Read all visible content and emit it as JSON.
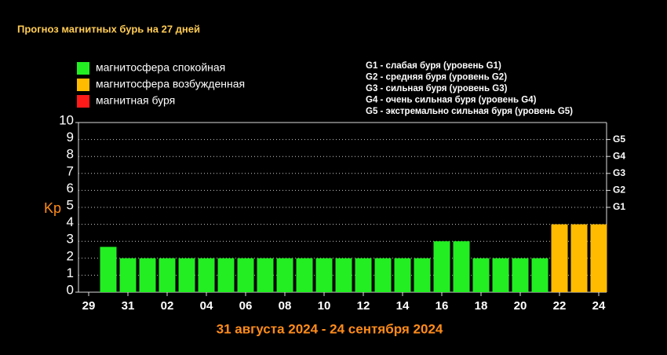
{
  "chart_data": {
    "type": "bar",
    "title": "Прогноз магнитных бурь на 27 дней",
    "legend": [
      {
        "label": "магнитосфера спокойная",
        "color": "#22ee22"
      },
      {
        "label": "магнитосфера возбужденная",
        "color": "#ffbb00"
      },
      {
        "label": "магнитная буря",
        "color": "#ff1a1a"
      }
    ],
    "g_levels": [
      "G1 - слабая буря (уровень G1)",
      "G2 - средняя буря (уровень G2)",
      "G3 - сильная буря (уровень G3)",
      "G4 - очень сильная буря (уровень G4)",
      "G5 - экстремально сильная буря (уровень G5)"
    ],
    "y_label": "Kp",
    "x_label": "31 августа 2024 - 24 сентября 2024",
    "categories": [
      "29",
      null,
      "31",
      null,
      "02",
      null,
      "04",
      null,
      "06",
      null,
      "08",
      null,
      "10",
      null,
      "12",
      null,
      "14",
      null,
      "16",
      null,
      "18",
      null,
      "20",
      null,
      "22",
      null,
      "24"
    ],
    "values": [
      null,
      2.67,
      2,
      2,
      2,
      2,
      2,
      2,
      2,
      2,
      2,
      2,
      2,
      2,
      2,
      2,
      2,
      2,
      3,
      3,
      2,
      2,
      2,
      2,
      4,
      4,
      4
    ],
    "colors": [
      null,
      "#22ee22",
      "#22ee22",
      "#22ee22",
      "#22ee22",
      "#22ee22",
      "#22ee22",
      "#22ee22",
      "#22ee22",
      "#22ee22",
      "#22ee22",
      "#22ee22",
      "#22ee22",
      "#22ee22",
      "#22ee22",
      "#22ee22",
      "#22ee22",
      "#22ee22",
      "#22ee22",
      "#22ee22",
      "#22ee22",
      "#22ee22",
      "#22ee22",
      "#22ee22",
      "#ffbb00",
      "#ffbb00",
      "#ffbb00"
    ],
    "ylim": [
      0,
      10
    ],
    "yticks": [
      0,
      1,
      2,
      3,
      4,
      5,
      6,
      7,
      8,
      9,
      10
    ],
    "y2lim": [
      0,
      10
    ],
    "y2ticks": [
      {
        "value": 5,
        "label": "G1"
      },
      {
        "value": 6,
        "label": "G2"
      },
      {
        "value": 7,
        "label": "G3"
      },
      {
        "value": 8,
        "label": "G4"
      },
      {
        "value": 9,
        "label": "G5"
      }
    ],
    "grid": true
  }
}
